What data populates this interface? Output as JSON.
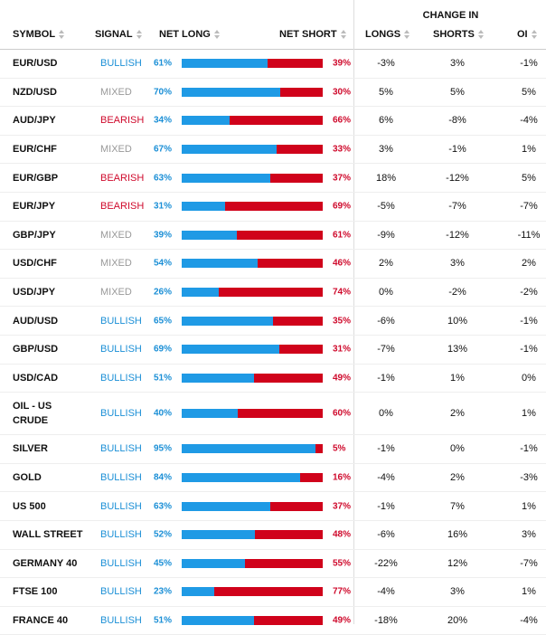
{
  "header": {
    "change_in": "CHANGE IN",
    "symbol": "SYMBOL",
    "signal": "SIGNAL",
    "net_long": "NET LONG",
    "net_short": "NET SHORT",
    "longs": "LONGS",
    "shorts": "SHORTS",
    "oi": "OI"
  },
  "rows": [
    {
      "symbol": "EUR/USD",
      "signal": "BULLISH",
      "net_long": "61%",
      "net_short": "39%",
      "long_fraction": 0.61,
      "longs": "-3%",
      "shorts": "3%",
      "oi": "-1%"
    },
    {
      "symbol": "NZD/USD",
      "signal": "MIXED",
      "net_long": "70%",
      "net_short": "30%",
      "long_fraction": 0.7,
      "longs": "5%",
      "shorts": "5%",
      "oi": "5%"
    },
    {
      "symbol": "AUD/JPY",
      "signal": "BEARISH",
      "net_long": "34%",
      "net_short": "66%",
      "long_fraction": 0.34,
      "longs": "6%",
      "shorts": "-8%",
      "oi": "-4%"
    },
    {
      "symbol": "EUR/CHF",
      "signal": "MIXED",
      "net_long": "67%",
      "net_short": "33%",
      "long_fraction": 0.67,
      "longs": "3%",
      "shorts": "-1%",
      "oi": "1%"
    },
    {
      "symbol": "EUR/GBP",
      "signal": "BEARISH",
      "net_long": "63%",
      "net_short": "37%",
      "long_fraction": 0.63,
      "longs": "18%",
      "shorts": "-12%",
      "oi": "5%"
    },
    {
      "symbol": "EUR/JPY",
      "signal": "BEARISH",
      "net_long": "31%",
      "net_short": "69%",
      "long_fraction": 0.31,
      "longs": "-5%",
      "shorts": "-7%",
      "oi": "-7%"
    },
    {
      "symbol": "GBP/JPY",
      "signal": "MIXED",
      "net_long": "39%",
      "net_short": "61%",
      "long_fraction": 0.39,
      "longs": "-9%",
      "shorts": "-12%",
      "oi": "-11%"
    },
    {
      "symbol": "USD/CHF",
      "signal": "MIXED",
      "net_long": "54%",
      "net_short": "46%",
      "long_fraction": 0.54,
      "longs": "2%",
      "shorts": "3%",
      "oi": "2%"
    },
    {
      "symbol": "USD/JPY",
      "signal": "MIXED",
      "net_long": "26%",
      "net_short": "74%",
      "long_fraction": 0.26,
      "longs": "0%",
      "shorts": "-2%",
      "oi": "-2%"
    },
    {
      "symbol": "AUD/USD",
      "signal": "BULLISH",
      "net_long": "65%",
      "net_short": "35%",
      "long_fraction": 0.65,
      "longs": "-6%",
      "shorts": "10%",
      "oi": "-1%"
    },
    {
      "symbol": "GBP/USD",
      "signal": "BULLISH",
      "net_long": "69%",
      "net_short": "31%",
      "long_fraction": 0.69,
      "longs": "-7%",
      "shorts": "13%",
      "oi": "-1%"
    },
    {
      "symbol": "USD/CAD",
      "signal": "BULLISH",
      "net_long": "51%",
      "net_short": "49%",
      "long_fraction": 0.51,
      "longs": "-1%",
      "shorts": "1%",
      "oi": "0%"
    },
    {
      "symbol": "OIL - US CRUDE",
      "signal": "BULLISH",
      "net_long": "40%",
      "net_short": "60%",
      "long_fraction": 0.4,
      "longs": "0%",
      "shorts": "2%",
      "oi": "1%",
      "tall": true
    },
    {
      "symbol": "SILVER",
      "signal": "BULLISH",
      "net_long": "95%",
      "net_short": "5%",
      "long_fraction": 0.95,
      "longs": "-1%",
      "shorts": "0%",
      "oi": "-1%"
    },
    {
      "symbol": "GOLD",
      "signal": "BULLISH",
      "net_long": "84%",
      "net_short": "16%",
      "long_fraction": 0.84,
      "longs": "-4%",
      "shorts": "2%",
      "oi": "-3%"
    },
    {
      "symbol": "US 500",
      "signal": "BULLISH",
      "net_long": "63%",
      "net_short": "37%",
      "long_fraction": 0.63,
      "longs": "-1%",
      "shorts": "7%",
      "oi": "1%"
    },
    {
      "symbol": "WALL STREET",
      "signal": "BULLISH",
      "net_long": "52%",
      "net_short": "48%",
      "long_fraction": 0.52,
      "longs": "-6%",
      "shorts": "16%",
      "oi": "3%"
    },
    {
      "symbol": "GERMANY 40",
      "signal": "BULLISH",
      "net_long": "45%",
      "net_short": "55%",
      "long_fraction": 0.45,
      "longs": "-22%",
      "shorts": "12%",
      "oi": "-7%"
    },
    {
      "symbol": "FTSE 100",
      "signal": "BULLISH",
      "net_long": "23%",
      "net_short": "77%",
      "long_fraction": 0.23,
      "longs": "-4%",
      "shorts": "3%",
      "oi": "1%"
    },
    {
      "symbol": "FRANCE 40",
      "signal": "BULLISH",
      "net_long": "51%",
      "net_short": "49%",
      "long_fraction": 0.51,
      "longs": "-18%",
      "shorts": "20%",
      "oi": "-4%"
    }
  ],
  "colors": {
    "long": "#1f9ae5",
    "short": "#d0021b",
    "bullish": "#1b8fd6",
    "bearish": "#cf0a2c",
    "mixed": "#999999"
  }
}
